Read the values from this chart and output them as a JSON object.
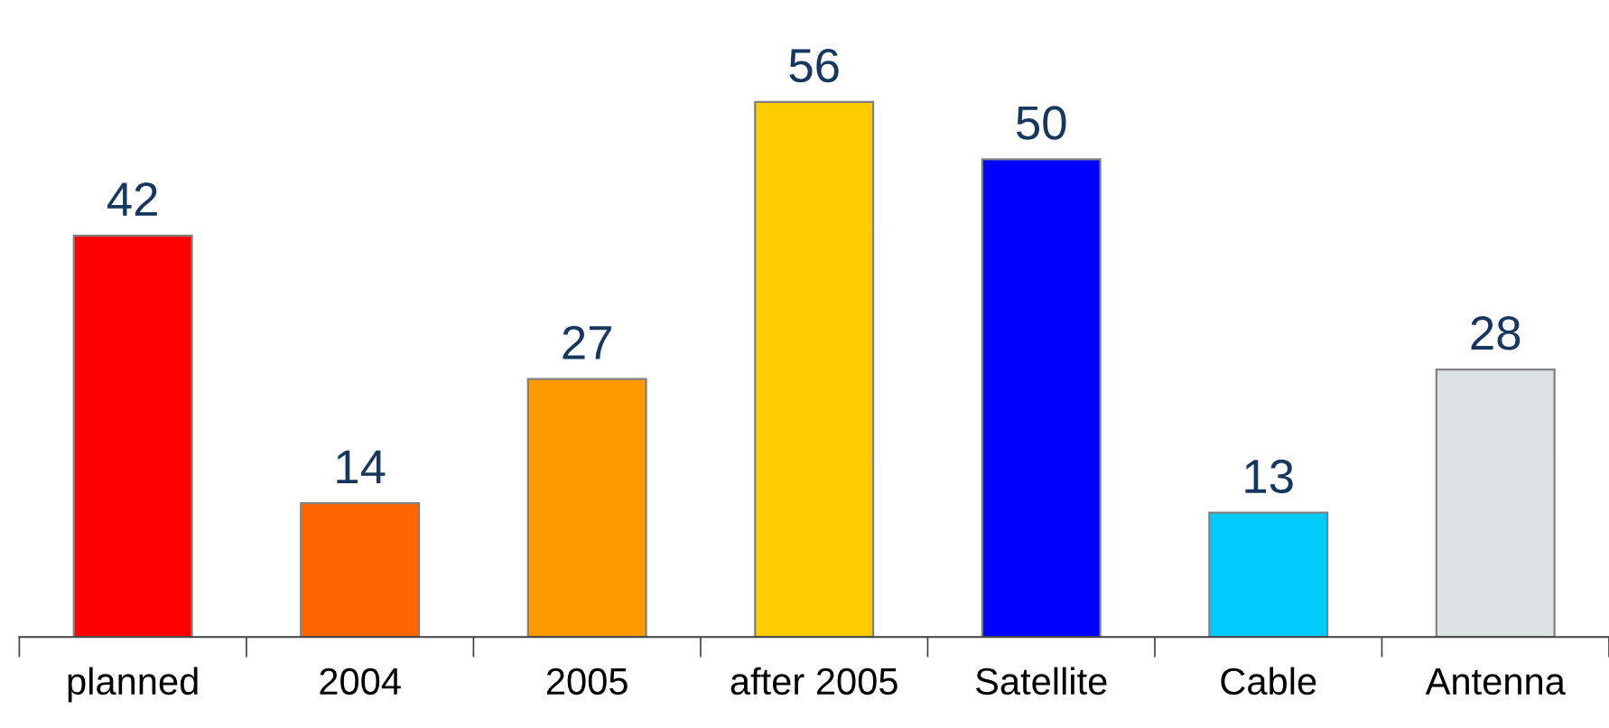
{
  "chart_data": {
    "type": "bar",
    "categories": [
      "planned",
      "2004",
      "2005",
      "after 2005",
      "Satellite",
      "Cable",
      "Antenna"
    ],
    "values": [
      42,
      14,
      27,
      56,
      50,
      13,
      28
    ],
    "colors": [
      "#ff0000",
      "#ff6600",
      "#ff9900",
      "#ffcc00",
      "#0000ff",
      "#00ccff",
      "#dce2e2"
    ],
    "data_labels": true,
    "grid": false,
    "legend": false,
    "tick_labels": "x"
  }
}
